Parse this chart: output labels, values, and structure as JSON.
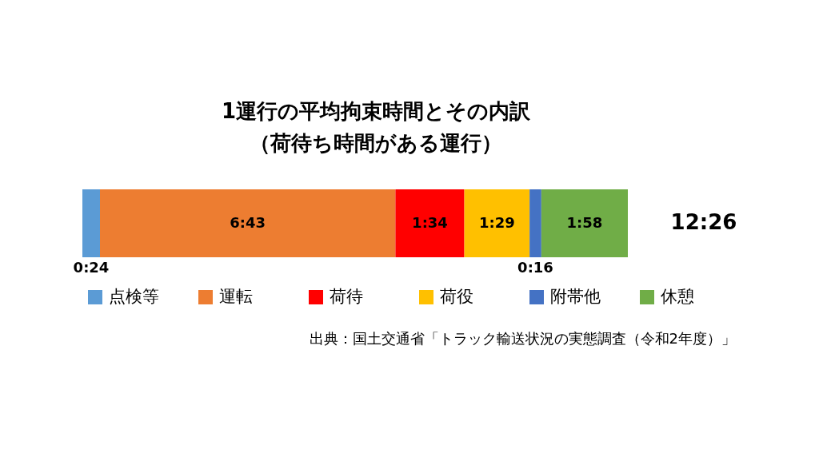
{
  "chart_data": {
    "type": "bar",
    "orientation": "horizontal",
    "stacked": true,
    "title": "1運行の平均拘束時間とその内訳",
    "subtitle": "（荷待ち時間がある運行）",
    "categories": [
      null
    ],
    "series": [
      {
        "name": "点検等",
        "color": "#5b9bd5",
        "values": [
          24
        ],
        "value_labels": [
          "0:24"
        ]
      },
      {
        "name": "運転",
        "color": "#ed7d31",
        "values": [
          403
        ],
        "value_labels": [
          "6:43"
        ]
      },
      {
        "name": "荷待",
        "color": "#ff0000",
        "values": [
          94
        ],
        "value_labels": [
          "1:34"
        ]
      },
      {
        "name": "荷役",
        "color": "#ffc000",
        "values": [
          89
        ],
        "value_labels": [
          "1:29"
        ]
      },
      {
        "name": "附帯他",
        "color": "#4472c4",
        "values": [
          16
        ],
        "value_labels": [
          "0:16"
        ]
      },
      {
        "name": "休憩",
        "color": "#70ad47",
        "values": [
          118
        ],
        "value_labels": [
          "1:58"
        ]
      }
    ],
    "totals": [
      "12:26"
    ],
    "legend": "bottom",
    "annotations": [
      "出典：国土交通省「トラック輸送状況の実態調査（令和2年度）」"
    ]
  }
}
